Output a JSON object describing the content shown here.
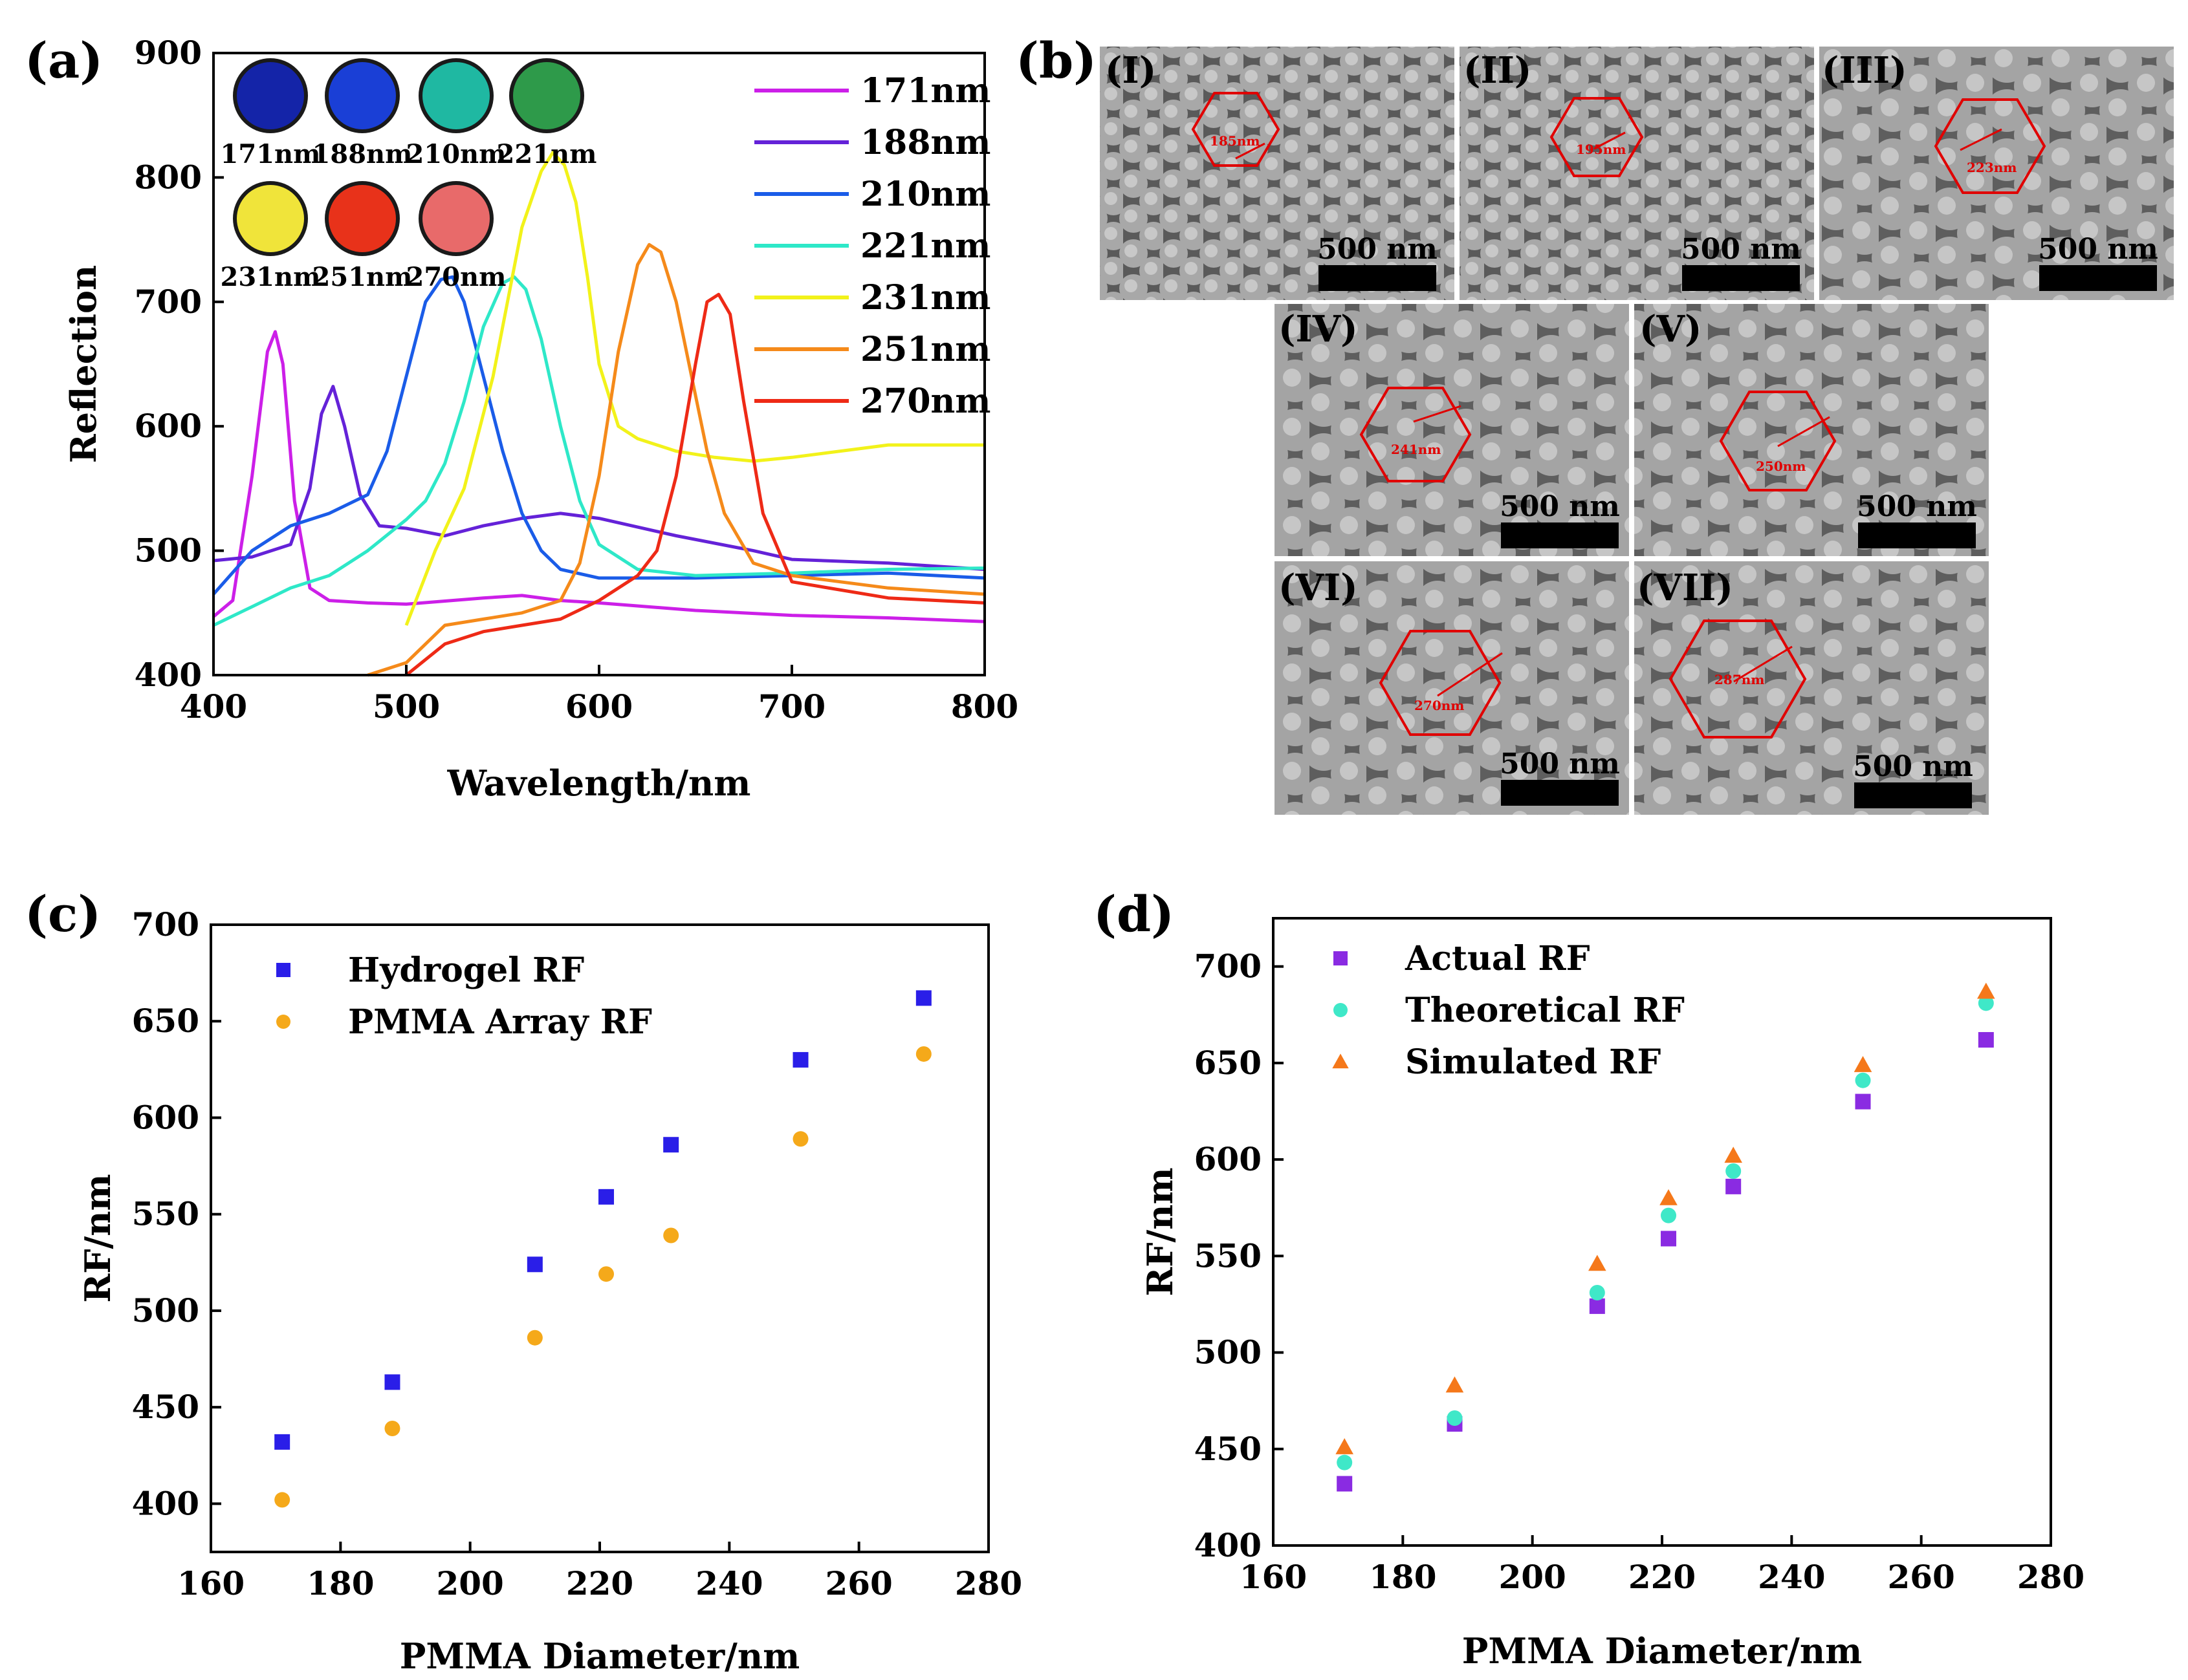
{
  "panel_labels": {
    "a": "(a)",
    "b": "(b)",
    "c": "(c)",
    "d": "(d)"
  },
  "chart_data": [
    {
      "id": "a",
      "type": "line",
      "title": "",
      "xlabel": "Wavelength/nm",
      "ylabel": "Reflection",
      "xlim": [
        400,
        800
      ],
      "ylim": [
        400,
        900
      ],
      "xticks": [
        400,
        500,
        600,
        700,
        800
      ],
      "yticks": [
        400,
        500,
        600,
        700,
        800,
        900
      ],
      "legend_position": "top-right",
      "series": [
        {
          "name": "171nm",
          "color": "#cc1fe8",
          "x": [
            400,
            410,
            420,
            428,
            432,
            436,
            442,
            450,
            460,
            480,
            500,
            540,
            560,
            580,
            600,
            650,
            700,
            750,
            800
          ],
          "y": [
            447,
            460,
            560,
            660,
            676,
            650,
            540,
            470,
            460,
            458,
            457,
            462,
            464,
            460,
            458,
            452,
            448,
            446,
            443
          ]
        },
        {
          "name": "188nm",
          "color": "#6422d8",
          "x": [
            400,
            420,
            440,
            450,
            456,
            462,
            468,
            476,
            486,
            500,
            520,
            540,
            560,
            580,
            600,
            640,
            680,
            700,
            750,
            800
          ],
          "y": [
            492,
            495,
            505,
            550,
            610,
            632,
            600,
            545,
            520,
            518,
            512,
            520,
            526,
            530,
            526,
            512,
            500,
            493,
            490,
            485
          ]
        },
        {
          "name": "210nm",
          "color": "#1a5ce8",
          "x": [
            400,
            420,
            440,
            460,
            480,
            490,
            500,
            510,
            518,
            524,
            530,
            540,
            550,
            560,
            570,
            580,
            600,
            650,
            700,
            750,
            800
          ],
          "y": [
            465,
            500,
            520,
            530,
            545,
            580,
            640,
            700,
            718,
            720,
            700,
            640,
            580,
            530,
            500,
            485,
            478,
            478,
            480,
            482,
            478
          ]
        },
        {
          "name": "221nm",
          "color": "#2ee8c8",
          "x": [
            400,
            420,
            440,
            460,
            480,
            500,
            510,
            520,
            530,
            540,
            550,
            556,
            562,
            570,
            580,
            590,
            600,
            620,
            650,
            700,
            750,
            800
          ],
          "y": [
            440,
            455,
            470,
            480,
            500,
            525,
            540,
            570,
            620,
            680,
            715,
            720,
            710,
            670,
            600,
            540,
            505,
            485,
            480,
            482,
            485,
            486
          ]
        },
        {
          "name": "231nm",
          "color": "#f2f21a",
          "x": [
            500,
            515,
            530,
            545,
            560,
            570,
            576,
            582,
            588,
            594,
            600,
            610,
            620,
            640,
            660,
            680,
            700,
            750,
            800
          ],
          "y": [
            440,
            500,
            550,
            640,
            760,
            805,
            820,
            810,
            780,
            720,
            650,
            600,
            590,
            580,
            575,
            572,
            575,
            585,
            585
          ]
        },
        {
          "name": "251nm",
          "color": "#f58a1a",
          "x": [
            480,
            500,
            520,
            540,
            560,
            580,
            590,
            600,
            610,
            620,
            626,
            632,
            640,
            648,
            656,
            665,
            680,
            700,
            750,
            800
          ],
          "y": [
            400,
            410,
            440,
            445,
            450,
            460,
            490,
            560,
            660,
            730,
            746,
            740,
            700,
            640,
            580,
            530,
            490,
            480,
            470,
            465
          ]
        },
        {
          "name": "270nm",
          "color": "#ee2a16",
          "x": [
            500,
            520,
            540,
            560,
            580,
            600,
            620,
            630,
            640,
            650,
            656,
            662,
            668,
            675,
            685,
            700,
            750,
            800
          ],
          "y": [
            400,
            425,
            435,
            440,
            445,
            460,
            480,
            500,
            560,
            650,
            700,
            706,
            690,
            620,
            530,
            475,
            462,
            458
          ]
        }
      ],
      "inset_swatches": [
        {
          "label": "171nm",
          "color": "#1424a8"
        },
        {
          "label": "188nm",
          "color": "#1a3fd6"
        },
        {
          "label": "210nm",
          "color": "#1fb8a2"
        },
        {
          "label": "221nm",
          "color": "#2e9a4a"
        },
        {
          "label": "231nm",
          "color": "#f0e43a"
        },
        {
          "label": "251nm",
          "color": "#e8321a"
        },
        {
          "label": "270nm",
          "color": "#e86a6a"
        }
      ]
    },
    {
      "id": "c",
      "type": "scatter",
      "xlabel": "PMMA Diameter/nm",
      "ylabel": "RF/nm",
      "xlim": [
        160,
        280
      ],
      "ylim": [
        375,
        700
      ],
      "xticks": [
        160,
        180,
        200,
        220,
        240,
        260,
        280
      ],
      "yticks": [
        400,
        450,
        500,
        550,
        600,
        650,
        700
      ],
      "legend_position": "top-left",
      "x": [
        171,
        188,
        210,
        221,
        231,
        251,
        270
      ],
      "series": [
        {
          "name": "Hydrogel RF",
          "marker": "square",
          "color": "#2a1ee8",
          "values": [
            432,
            463,
            524,
            559,
            586,
            630,
            662
          ]
        },
        {
          "name": "PMMA Array RF",
          "marker": "circle",
          "color": "#f5a91a",
          "values": [
            402,
            439,
            486,
            519,
            539,
            589,
            633
          ]
        }
      ]
    },
    {
      "id": "d",
      "type": "scatter",
      "xlabel": "PMMA Diameter/nm",
      "ylabel": "RF/nm",
      "xlim": [
        160,
        280
      ],
      "ylim": [
        400,
        725
      ],
      "xticks": [
        160,
        180,
        200,
        220,
        240,
        260,
        280
      ],
      "yticks": [
        400,
        450,
        500,
        550,
        600,
        650,
        700
      ],
      "legend_position": "top-left",
      "x": [
        171,
        188,
        210,
        221,
        231,
        251,
        270
      ],
      "series": [
        {
          "name": "Actual RF",
          "marker": "square",
          "color": "#8a2be2",
          "values": [
            432,
            463,
            524,
            559,
            586,
            630,
            662
          ]
        },
        {
          "name": "Theoretical RF",
          "marker": "circle",
          "color": "#3fe8c8",
          "values": [
            443,
            466,
            531,
            571,
            594,
            641,
            681
          ]
        },
        {
          "name": "Simulated RF",
          "marker": "triangle",
          "color": "#f5781a",
          "values": [
            451,
            483,
            546,
            580,
            602,
            649,
            687
          ]
        }
      ]
    }
  ],
  "sem": {
    "scale_bar_label": "500 nm",
    "images": [
      {
        "label": "(I)",
        "size": "185nm"
      },
      {
        "label": "(II)",
        "size": "195nm"
      },
      {
        "label": "(III)",
        "size": "223nm"
      },
      {
        "label": "(IV)",
        "size": "241nm"
      },
      {
        "label": "(V)",
        "size": "250nm"
      },
      {
        "label": "(VI)",
        "size": "270nm"
      },
      {
        "label": "(VII)",
        "size": "287nm"
      }
    ]
  }
}
